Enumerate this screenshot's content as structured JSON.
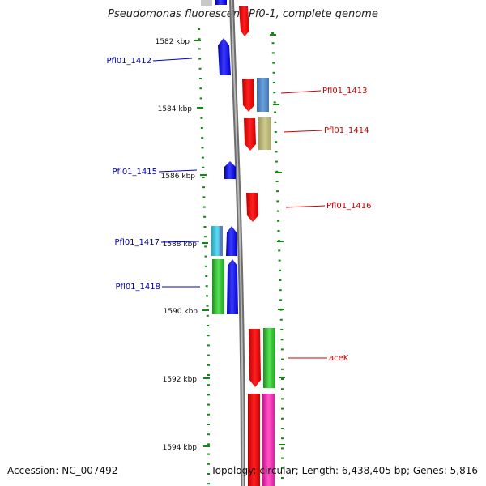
{
  "title": "Pseudomonas fluorescens Pf0-1, complete genome",
  "footer": {
    "accession": "Accession: NC_007492",
    "topology": "Topology: circular; Length: 6,438,405 bp; Genes: 5,816"
  },
  "ticks": [
    "1582 kbp",
    "1584 kbp",
    "1586 kbp",
    "1588 kbp",
    "1590 kbp",
    "1592 kbp",
    "1594 kbp"
  ],
  "genes_left": [
    "Pfl01_1412",
    "Pfl01_1415",
    "Pfl01_1417",
    "Pfl01_1418"
  ],
  "genes_right": [
    "Pfl01_1413",
    "Pfl01_1414",
    "Pfl01_1416",
    "aceK"
  ],
  "colors": {
    "forward_strand": "#0000ee",
    "reverse_strand": "#ee0000",
    "backbone": "#808080",
    "tick": "#118811"
  }
}
